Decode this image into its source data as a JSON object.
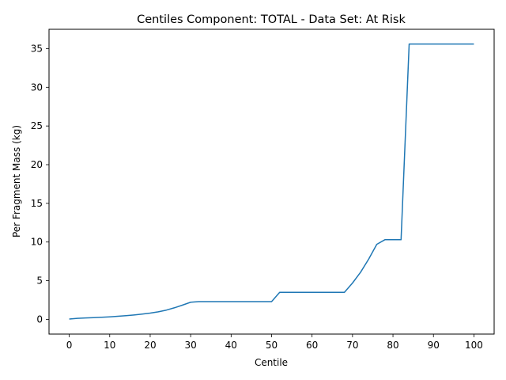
{
  "chart_data": {
    "type": "line",
    "title": "Centiles Component: TOTAL - Data Set: At Risk",
    "xlabel": "Centile",
    "ylabel": "Per Fragment Mass (kg)",
    "xlim": [
      -5,
      105
    ],
    "ylim": [
      -1.9,
      37.5
    ],
    "xticks": [
      0,
      10,
      20,
      30,
      40,
      50,
      60,
      70,
      80,
      90,
      100
    ],
    "yticks": [
      0,
      5,
      10,
      15,
      20,
      25,
      30,
      35
    ],
    "grid": false,
    "series": [
      {
        "color": "#1f77b4",
        "x": [
          0,
          2,
          4,
          6,
          8,
          10,
          12,
          14,
          16,
          18,
          20,
          22,
          24,
          26,
          28,
          30,
          32,
          34,
          36,
          38,
          40,
          42,
          44,
          46,
          48,
          50,
          52,
          54,
          56,
          58,
          60,
          62,
          64,
          66,
          68,
          70,
          72,
          74,
          76,
          78,
          80,
          82,
          84,
          86,
          88,
          90,
          92,
          94,
          96,
          98,
          100
        ],
        "y": [
          0.05,
          0.14,
          0.18,
          0.23,
          0.28,
          0.33,
          0.4,
          0.48,
          0.57,
          0.68,
          0.81,
          0.98,
          1.2,
          1.5,
          1.85,
          2.22,
          2.3,
          2.3,
          2.3,
          2.3,
          2.3,
          2.3,
          2.3,
          2.3,
          2.3,
          2.3,
          3.5,
          3.5,
          3.5,
          3.5,
          3.5,
          3.5,
          3.5,
          3.5,
          3.5,
          4.7,
          6.1,
          7.8,
          9.7,
          10.3,
          10.3,
          10.3,
          35.6,
          35.6,
          35.6,
          35.6,
          35.6,
          35.6,
          35.6,
          35.6,
          35.6
        ]
      }
    ]
  }
}
